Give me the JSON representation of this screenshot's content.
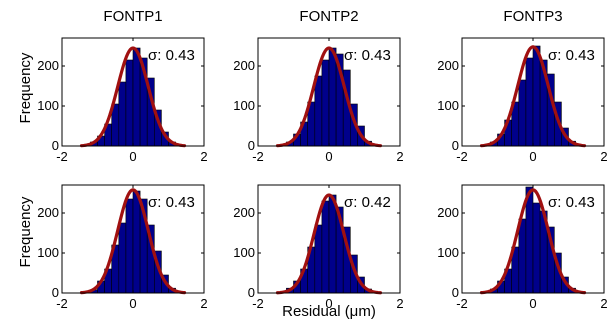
{
  "figure": {
    "ylabel": "Frequency",
    "xlabel": "Residual (μm)",
    "column_titles": [
      "FONTP1",
      "FONTP2",
      "FONTP3"
    ]
  },
  "colors": {
    "bar": "#00008b",
    "bar_edge": "#000000",
    "fit": "#a01010"
  },
  "chart_data": [
    {
      "type": "bar",
      "row": 0,
      "col": 0,
      "title": "FONTP1",
      "annotation": "σ: 0.43",
      "xlim": [
        -2,
        2
      ],
      "ylim": [
        0,
        270
      ],
      "xticks": [
        -2,
        0,
        2
      ],
      "yticks": [
        0,
        100,
        200
      ],
      "bin_edges": [
        -1.4,
        -1.2,
        -1.0,
        -0.8,
        -0.6,
        -0.4,
        -0.2,
        0.0,
        0.2,
        0.4,
        0.6,
        0.8,
        1.0,
        1.2,
        1.4
      ],
      "values": [
        3,
        10,
        25,
        55,
        105,
        160,
        215,
        245,
        220,
        170,
        90,
        35,
        10,
        3
      ],
      "fit": {
        "type": "gaussian",
        "mean": 0,
        "sigma": 0.43,
        "peak": 245
      }
    },
    {
      "type": "bar",
      "row": 0,
      "col": 1,
      "title": "FONTP2",
      "annotation": "σ: 0.43",
      "xlim": [
        -2,
        2
      ],
      "ylim": [
        0,
        270
      ],
      "xticks": [
        -2,
        0,
        2
      ],
      "yticks": [
        0,
        100,
        200
      ],
      "bin_edges": [
        -1.4,
        -1.2,
        -1.0,
        -0.8,
        -0.6,
        -0.4,
        -0.2,
        0.0,
        0.2,
        0.4,
        0.6,
        0.8,
        1.0,
        1.2,
        1.4
      ],
      "values": [
        3,
        10,
        30,
        60,
        110,
        175,
        215,
        245,
        230,
        190,
        105,
        50,
        12,
        3
      ],
      "fit": {
        "type": "gaussian",
        "mean": 0,
        "sigma": 0.43,
        "peak": 245
      }
    },
    {
      "type": "bar",
      "row": 0,
      "col": 2,
      "title": "FONTP3",
      "annotation": "σ: 0.43",
      "xlim": [
        -2,
        2
      ],
      "ylim": [
        0,
        270
      ],
      "xticks": [
        -2,
        0,
        2
      ],
      "yticks": [
        0,
        100,
        200
      ],
      "bin_edges": [
        -1.4,
        -1.2,
        -1.0,
        -0.8,
        -0.6,
        -0.4,
        -0.2,
        0.0,
        0.2,
        0.4,
        0.6,
        0.8,
        1.0,
        1.2,
        1.4
      ],
      "values": [
        3,
        10,
        30,
        65,
        110,
        165,
        220,
        250,
        215,
        180,
        110,
        45,
        12,
        3
      ],
      "fit": {
        "type": "gaussian",
        "mean": 0,
        "sigma": 0.43,
        "peak": 248
      }
    },
    {
      "type": "bar",
      "row": 1,
      "col": 0,
      "title": "",
      "annotation": "σ: 0.43",
      "xlim": [
        -2,
        2
      ],
      "ylim": [
        0,
        270
      ],
      "xticks": [
        -2,
        0,
        2
      ],
      "yticks": [
        0,
        100,
        200
      ],
      "bin_edges": [
        -1.4,
        -1.2,
        -1.0,
        -0.8,
        -0.6,
        -0.4,
        -0.2,
        0.0,
        0.2,
        0.4,
        0.6,
        0.8,
        1.0,
        1.2,
        1.4
      ],
      "values": [
        3,
        8,
        30,
        60,
        120,
        175,
        235,
        255,
        235,
        170,
        105,
        45,
        12,
        3
      ],
      "fit": {
        "type": "gaussian",
        "mean": 0,
        "sigma": 0.43,
        "peak": 258
      }
    },
    {
      "type": "bar",
      "row": 1,
      "col": 1,
      "title": "",
      "annotation": "σ: 0.42",
      "xlim": [
        -2,
        2
      ],
      "ylim": [
        0,
        270
      ],
      "xticks": [
        -2,
        0,
        2
      ],
      "yticks": [
        0,
        100,
        200
      ],
      "bin_edges": [
        -1.4,
        -1.2,
        -1.0,
        -0.8,
        -0.6,
        -0.4,
        -0.2,
        0.0,
        0.2,
        0.4,
        0.6,
        0.8,
        1.0,
        1.2,
        1.4
      ],
      "values": [
        3,
        12,
        30,
        60,
        115,
        170,
        230,
        245,
        215,
        165,
        95,
        40,
        10,
        3
      ],
      "fit": {
        "type": "gaussian",
        "mean": 0,
        "sigma": 0.42,
        "peak": 245
      }
    },
    {
      "type": "bar",
      "row": 1,
      "col": 2,
      "title": "",
      "annotation": "σ: 0.43",
      "xlim": [
        -2,
        2
      ],
      "ylim": [
        0,
        270
      ],
      "xticks": [
        -2,
        0,
        2
      ],
      "yticks": [
        0,
        100,
        200
      ],
      "bin_edges": [
        -1.4,
        -1.2,
        -1.0,
        -0.8,
        -0.6,
        -0.4,
        -0.2,
        0.0,
        0.2,
        0.4,
        0.6,
        0.8,
        1.0,
        1.2,
        1.4
      ],
      "values": [
        3,
        10,
        30,
        60,
        115,
        185,
        265,
        225,
        205,
        165,
        100,
        40,
        12,
        3
      ],
      "fit": {
        "type": "gaussian",
        "mean": 0,
        "sigma": 0.43,
        "peak": 258
      }
    }
  ]
}
